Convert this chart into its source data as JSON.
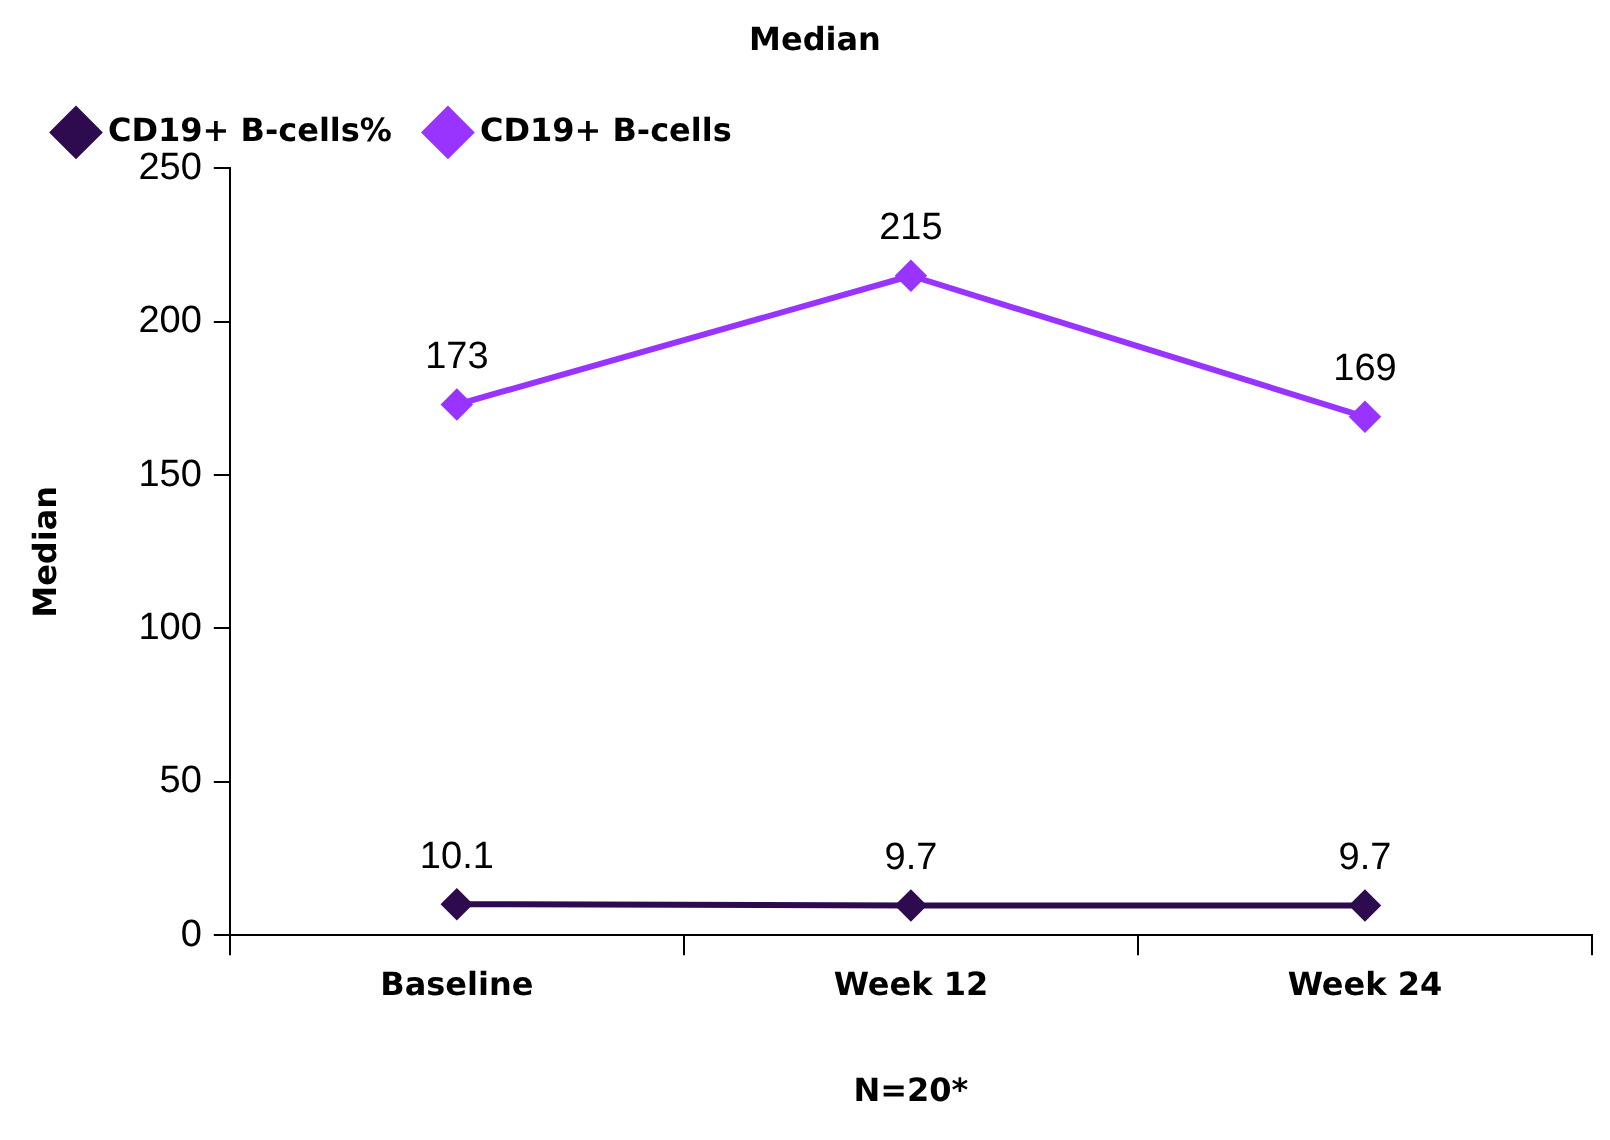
{
  "chart_data": {
    "type": "line",
    "title": "Median",
    "xlabel": "N=20*",
    "ylabel": "Median",
    "categories": [
      "Baseline",
      "Week 12",
      "Week 24"
    ],
    "series": [
      {
        "name": "CD19+ B-cells%",
        "color": "#2e0a4e",
        "values": [
          10.1,
          9.7,
          9.7
        ]
      },
      {
        "name": "CD19+ B-cells",
        "color": "#9933ff",
        "values": [
          173,
          215,
          169
        ]
      }
    ],
    "ylim": [
      0,
      250
    ],
    "yticks": [
      0,
      50,
      100,
      150,
      200,
      250
    ],
    "data_labels": true,
    "legend": "top left",
    "marker": "diamond",
    "line_style": "solid"
  }
}
